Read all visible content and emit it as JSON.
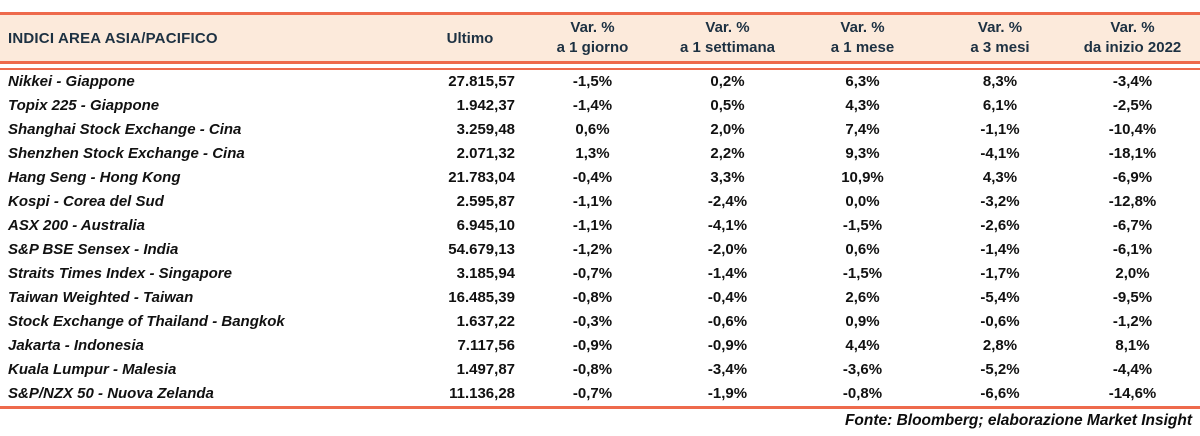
{
  "colors": {
    "accent": "#ee6a4c",
    "header_bg": "#fceadb",
    "header_text": "#1d3142",
    "body_text": "#111111"
  },
  "table": {
    "title": "INDICI AREA ASIA/PACIFICO",
    "col_ultimo": "Ultimo",
    "var_label": "Var. %",
    "period_headers": [
      "a 1 giorno",
      "a 1 settimana",
      "a 1 mese",
      "a 3 mesi",
      "da inizio 2022"
    ],
    "rows": [
      {
        "name": "Nikkei - Giappone",
        "ultimo": "27.815,57",
        "vars": [
          "-1,5%",
          "0,2%",
          "6,3%",
          "8,3%",
          "-3,4%"
        ]
      },
      {
        "name": "Topix 225 - Giappone",
        "ultimo": "1.942,37",
        "vars": [
          "-1,4%",
          "0,5%",
          "4,3%",
          "6,1%",
          "-2,5%"
        ]
      },
      {
        "name": "Shanghai Stock Exchange - Cina",
        "ultimo": "3.259,48",
        "vars": [
          "0,6%",
          "2,0%",
          "7,4%",
          "-1,1%",
          "-10,4%"
        ]
      },
      {
        "name": "Shenzhen Stock Exchange - Cina",
        "ultimo": "2.071,32",
        "vars": [
          "1,3%",
          "2,2%",
          "9,3%",
          "-4,1%",
          "-18,1%"
        ]
      },
      {
        "name": "Hang Seng - Hong Kong",
        "ultimo": "21.783,04",
        "vars": [
          "-0,4%",
          "3,3%",
          "10,9%",
          "4,3%",
          "-6,9%"
        ]
      },
      {
        "name": "Kospi - Corea del Sud",
        "ultimo": "2.595,87",
        "vars": [
          "-1,1%",
          "-2,4%",
          "0,0%",
          "-3,2%",
          "-12,8%"
        ]
      },
      {
        "name": "ASX 200 - Australia",
        "ultimo": "6.945,10",
        "vars": [
          "-1,1%",
          "-4,1%",
          "-1,5%",
          "-2,6%",
          "-6,7%"
        ]
      },
      {
        "name": "S&P BSE Sensex - India",
        "ultimo": "54.679,13",
        "vars": [
          "-1,2%",
          "-2,0%",
          "0,6%",
          "-1,4%",
          "-6,1%"
        ]
      },
      {
        "name": "Straits Times Index - Singapore",
        "ultimo": "3.185,94",
        "vars": [
          "-0,7%",
          "-1,4%",
          "-1,5%",
          "-1,7%",
          "2,0%"
        ]
      },
      {
        "name": "Taiwan Weighted - Taiwan",
        "ultimo": "16.485,39",
        "vars": [
          "-0,8%",
          "-0,4%",
          "2,6%",
          "-5,4%",
          "-9,5%"
        ]
      },
      {
        "name": "Stock Exchange of Thailand - Bangkok",
        "ultimo": "1.637,22",
        "vars": [
          "-0,3%",
          "-0,6%",
          "0,9%",
          "-0,6%",
          "-1,2%"
        ]
      },
      {
        "name": "Jakarta - Indonesia",
        "ultimo": "7.117,56",
        "vars": [
          "-0,9%",
          "-0,9%",
          "4,4%",
          "2,8%",
          "8,1%"
        ]
      },
      {
        "name": "Kuala Lumpur - Malesia",
        "ultimo": "1.497,87",
        "vars": [
          "-0,8%",
          "-3,4%",
          "-3,6%",
          "-5,2%",
          "-4,4%"
        ]
      },
      {
        "name": "S&P/NZX 50 - Nuova Zelanda",
        "ultimo": "11.136,28",
        "vars": [
          "-0,7%",
          "-1,9%",
          "-0,8%",
          "-6,6%",
          "-14,6%"
        ]
      }
    ]
  },
  "footer": {
    "source": "Fonte: Bloomberg; elaborazione Market Insight"
  },
  "chart_data": {
    "type": "table",
    "title": "INDICI AREA ASIA/PACIFICO",
    "columns": [
      "INDICI AREA ASIA/PACIFICO",
      "Ultimo",
      "Var. % a 1 giorno",
      "Var. % a 1 settimana",
      "Var. % a 1 mese",
      "Var. % a 3 mesi",
      "Var. % da inizio 2022"
    ],
    "rows": [
      [
        "Nikkei - Giappone",
        27815.57,
        -1.5,
        0.2,
        6.3,
        8.3,
        -3.4
      ],
      [
        "Topix 225 - Giappone",
        1942.37,
        -1.4,
        0.5,
        4.3,
        6.1,
        -2.5
      ],
      [
        "Shanghai Stock Exchange - Cina",
        3259.48,
        0.6,
        2.0,
        7.4,
        -1.1,
        -10.4
      ],
      [
        "Shenzhen Stock Exchange - Cina",
        2071.32,
        1.3,
        2.2,
        9.3,
        -4.1,
        -18.1
      ],
      [
        "Hang Seng - Hong Kong",
        21783.04,
        -0.4,
        3.3,
        10.9,
        4.3,
        -6.9
      ],
      [
        "Kospi - Corea del Sud",
        2595.87,
        -1.1,
        -2.4,
        0.0,
        -3.2,
        -12.8
      ],
      [
        "ASX 200 - Australia",
        6945.1,
        -1.1,
        -4.1,
        -1.5,
        -2.6,
        -6.7
      ],
      [
        "S&P BSE Sensex - India",
        54679.13,
        -1.2,
        -2.0,
        0.6,
        -1.4,
        -6.1
      ],
      [
        "Straits Times Index - Singapore",
        3185.94,
        -0.7,
        -1.4,
        -1.5,
        -1.7,
        2.0
      ],
      [
        "Taiwan Weighted - Taiwan",
        16485.39,
        -0.8,
        -0.4,
        2.6,
        -5.4,
        -9.5
      ],
      [
        "Stock Exchange of Thailand - Bangkok",
        1637.22,
        -0.3,
        -0.6,
        0.9,
        -0.6,
        -1.2
      ],
      [
        "Jakarta - Indonesia",
        7117.56,
        -0.9,
        -0.9,
        4.4,
        2.8,
        8.1
      ],
      [
        "Kuala Lumpur - Malesia",
        1497.87,
        -0.8,
        -3.4,
        -3.6,
        -5.2,
        -4.4
      ],
      [
        "S&P/NZX 50 - Nuova Zelanda",
        11136.28,
        -0.7,
        -1.9,
        -0.8,
        -6.6,
        -14.6
      ]
    ],
    "notes": "Fonte: Bloomberg; elaborazione Market Insight",
    "number_format": "it-IT (comma decimals, dot thousands)"
  }
}
